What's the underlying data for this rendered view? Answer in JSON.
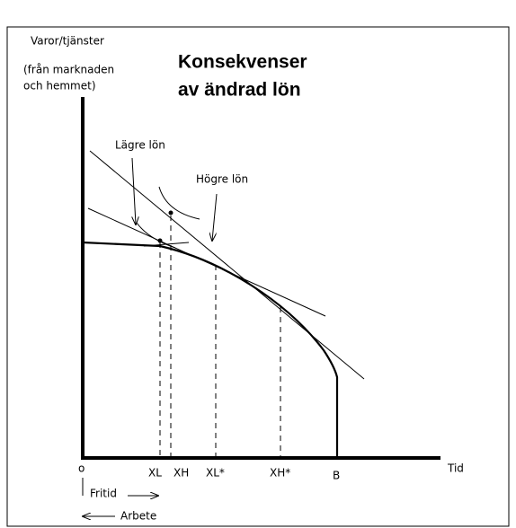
{
  "y_axis_label": [
    "Varor/tjänster",
    "(från marknaden",
    "och hemmet)"
  ],
  "title": [
    "Konsekvenser",
    "av ändrad lön"
  ],
  "annotations": {
    "lower_wage": "Lägre lön",
    "higher_wage": "Högre lön"
  },
  "x_labels": {
    "origin": "o",
    "xl": "XL",
    "xh": "XH",
    "xl_star": "XL*",
    "xh_star": "XH*",
    "b": "B"
  },
  "x_axis_label": "Tid",
  "directions": {
    "leisure": "Fritid",
    "work": "Arbete"
  }
}
